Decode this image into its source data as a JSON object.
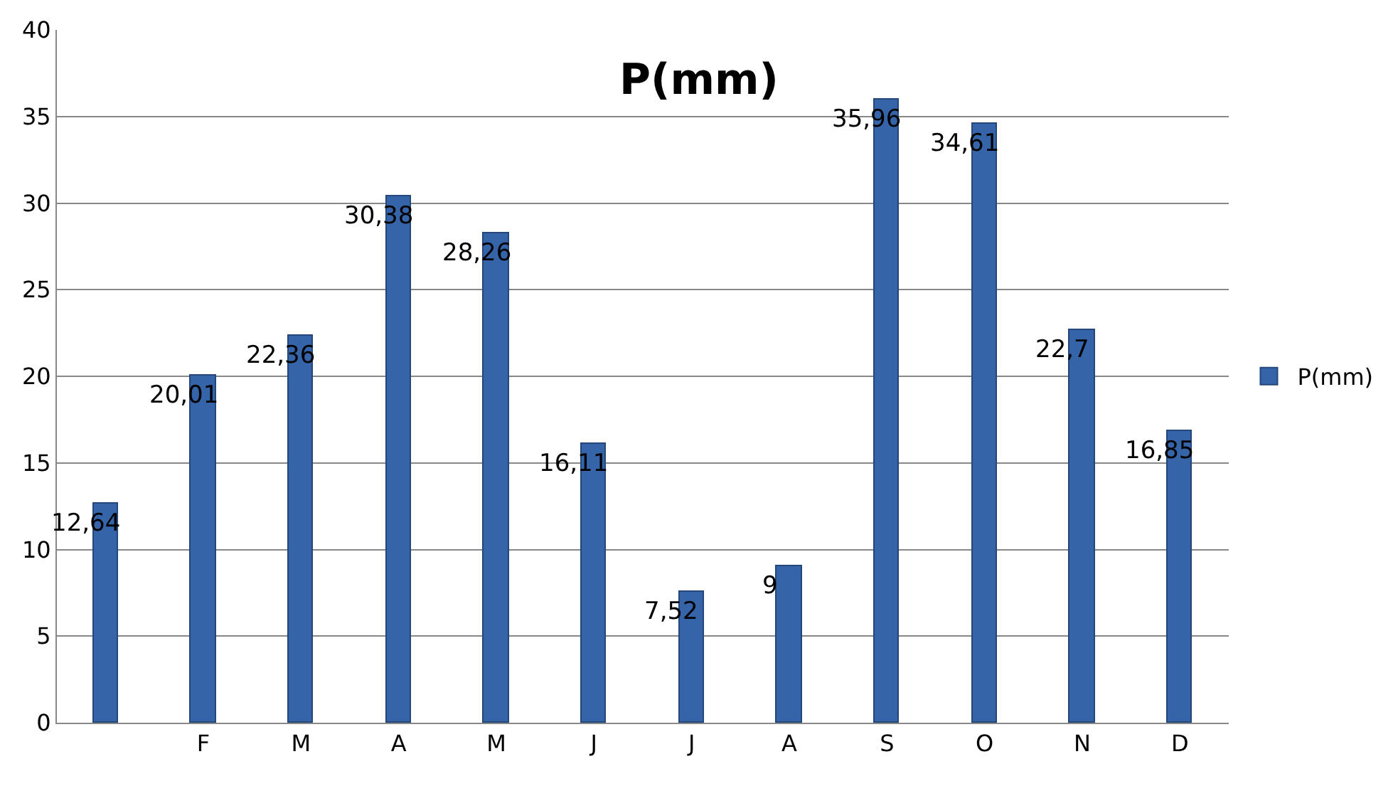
{
  "chart_data": {
    "type": "bar",
    "title": "P(mm)",
    "categories": [
      null,
      "F",
      "M",
      "A",
      "M",
      "J",
      "J",
      "A",
      "S",
      "O",
      "N",
      "D"
    ],
    "series": [
      {
        "name": "P(mm)",
        "color": "#3565a8",
        "values": [
          12.64,
          20.01,
          22.36,
          30.38,
          28.26,
          16.11,
          7.52,
          9,
          35.96,
          34.61,
          22.7,
          16.85
        ],
        "value_labels": [
          "12,64",
          "20,01",
          "22,36",
          "30,38",
          "28,26",
          "16,11",
          "7,52",
          "9",
          "35,96",
          "34,61",
          "22,7",
          "16,85"
        ]
      }
    ],
    "ylim": [
      0,
      40
    ],
    "yticks": [
      0,
      5,
      10,
      15,
      20,
      25,
      30,
      35,
      40
    ],
    "grid": "y",
    "legend": "right"
  }
}
